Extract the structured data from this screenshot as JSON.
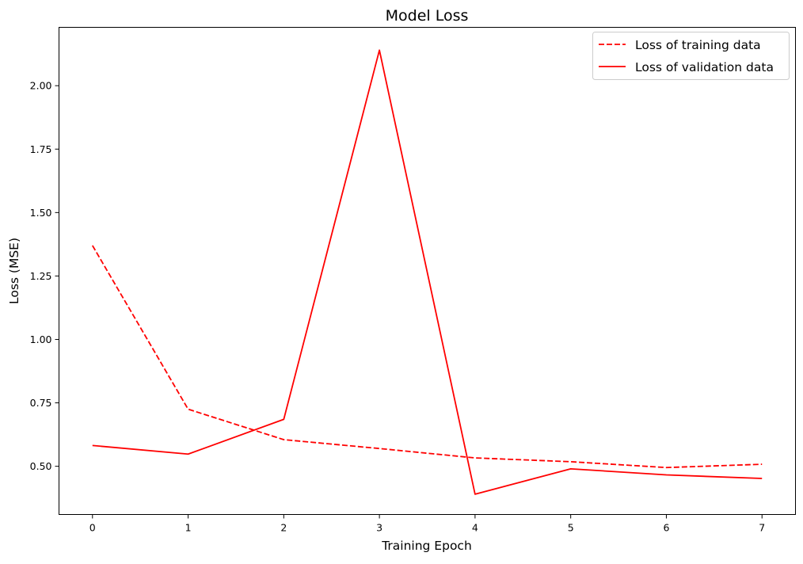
{
  "chart_data": {
    "type": "line",
    "title": "Model Loss",
    "xlabel": "Training Epoch",
    "ylabel": "Loss (MSE)",
    "x": [
      0,
      1,
      2,
      3,
      4,
      5,
      6,
      7
    ],
    "xticks": [
      0,
      1,
      2,
      3,
      4,
      5,
      6,
      7
    ],
    "xtick_labels": [
      "0",
      "1",
      "2",
      "3",
      "4",
      "5",
      "6",
      "7"
    ],
    "yticks": [
      0.5,
      0.75,
      1.0,
      1.25,
      1.5,
      1.75,
      2.0
    ],
    "ytick_labels": [
      "0.50",
      "0.75",
      "1.00",
      "1.25",
      "1.50",
      "1.75",
      "2.00"
    ],
    "xlim": [
      -0.35,
      7.35
    ],
    "ylim": [
      0.31,
      2.23
    ],
    "grid": false,
    "legend_position": "top-right",
    "series": [
      {
        "name": "Loss of training data",
        "values": [
          1.37,
          0.725,
          0.605,
          0.57,
          0.533,
          0.518,
          0.495,
          0.508
        ],
        "color": "#ff0000",
        "style": "dashed"
      },
      {
        "name": "Loss of validation data",
        "values": [
          0.582,
          0.548,
          0.685,
          2.14,
          0.39,
          0.49,
          0.466,
          0.452
        ],
        "color": "#ff0000",
        "style": "solid"
      }
    ]
  }
}
